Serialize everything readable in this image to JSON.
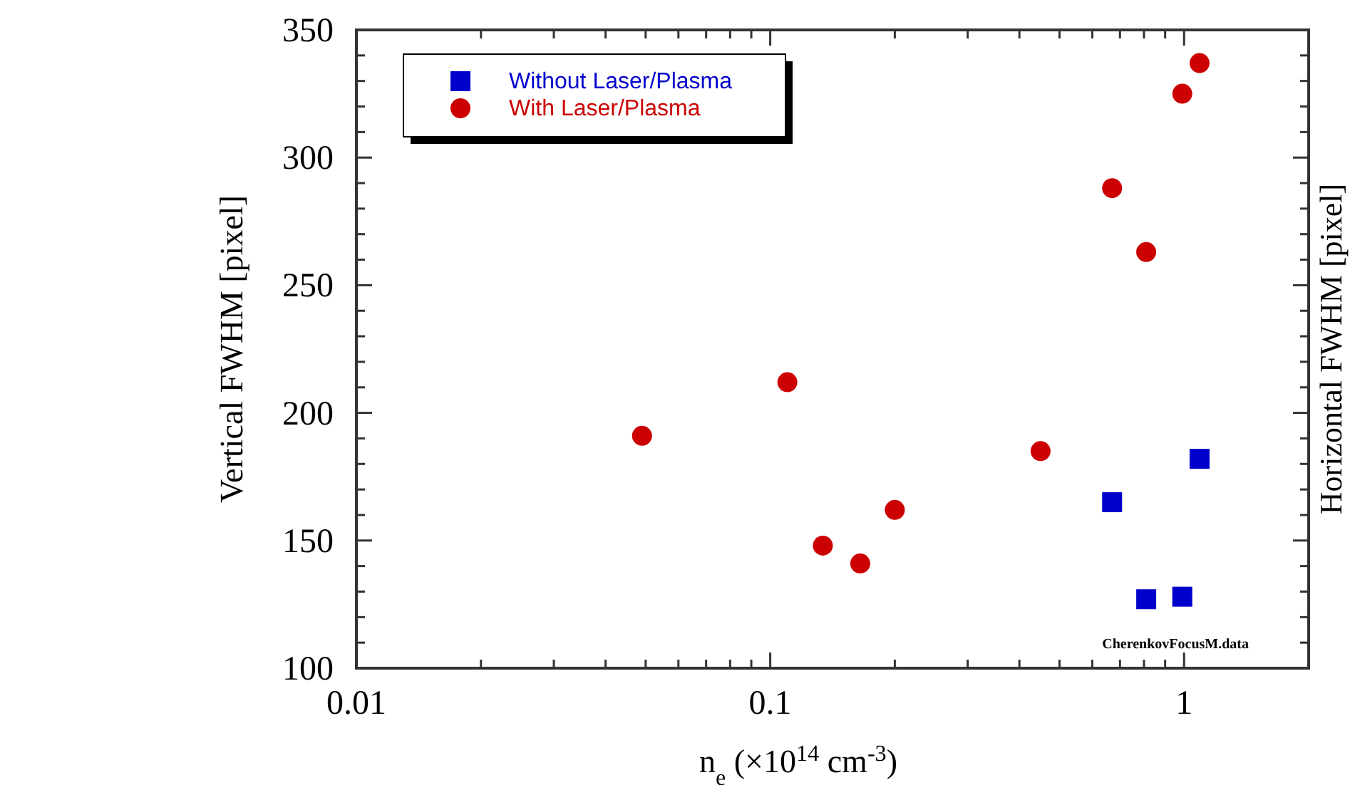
{
  "chart_data": {
    "type": "scatter",
    "xlabel": "n$_{e}$ (×10$^{14}$ cm$^{-3}$)",
    "ylabel": "Vertical FWHM [pixel]",
    "y2label": "Horizontal FWHM [pixel]",
    "log": "x",
    "xlim": [
      0.01,
      2
    ],
    "xticks": [
      0.01,
      {
        "value": 0.02,
        "label": null
      },
      {
        "value": 0.03,
        "label": null
      },
      {
        "value": 0.04,
        "label": null
      },
      {
        "value": 0.05,
        "label": null
      },
      {
        "value": 0.06,
        "label": null
      },
      {
        "value": 0.07,
        "label": null
      },
      {
        "value": 0.08,
        "label": null
      },
      {
        "value": 0.09,
        "label": null
      },
      0.1,
      {
        "value": 0.2,
        "label": null
      },
      {
        "value": 0.3,
        "label": null
      },
      {
        "value": 0.4,
        "label": null
      },
      {
        "value": 0.5,
        "label": null
      },
      {
        "value": 0.6,
        "label": null
      },
      {
        "value": 0.7,
        "label": null
      },
      {
        "value": 0.8,
        "label": null
      },
      {
        "value": 0.9,
        "label": null
      },
      1
    ],
    "ylim": [
      100,
      350
    ],
    "yticks": [
      100,
      {
        "value": 110,
        "label": null
      },
      {
        "value": 120,
        "label": null
      },
      {
        "value": 130,
        "label": null
      },
      {
        "value": 140,
        "label": null
      },
      150,
      {
        "value": 160,
        "label": null
      },
      {
        "value": 170,
        "label": null
      },
      {
        "value": 180,
        "label": null
      },
      {
        "value": 190,
        "label": null
      },
      200,
      {
        "value": 210,
        "label": null
      },
      {
        "value": 220,
        "label": null
      },
      {
        "value": 230,
        "label": null
      },
      {
        "value": 240,
        "label": null
      },
      250,
      {
        "value": 260,
        "label": null
      },
      {
        "value": 270,
        "label": null
      },
      {
        "value": 280,
        "label": null
      },
      {
        "value": 290,
        "label": null
      },
      300,
      {
        "value": 310,
        "label": null
      },
      {
        "value": 320,
        "label": null
      },
      {
        "value": 330,
        "label": null
      },
      {
        "value": 340,
        "label": null
      },
      350
    ],
    "grid": false,
    "legend": "top left",
    "annotations": [
      "CherenkovFocusM.data"
    ],
    "series": [
      {
        "name": "Without Laser/Plasma",
        "color": "#0000cc",
        "marker": "square",
        "x": [
          0.67,
          0.81,
          0.99,
          1.09
        ],
        "values": [
          165,
          127,
          128,
          182
        ]
      },
      {
        "name": "With Laser/Plasma",
        "color": "#cc0000",
        "marker": "circle",
        "x": [
          0.049,
          0.11,
          0.134,
          0.165,
          0.2,
          0.45,
          0.67,
          0.81,
          0.99,
          1.09
        ],
        "values": [
          191,
          212,
          148,
          141,
          162,
          185,
          288,
          263,
          325,
          337
        ]
      }
    ]
  }
}
